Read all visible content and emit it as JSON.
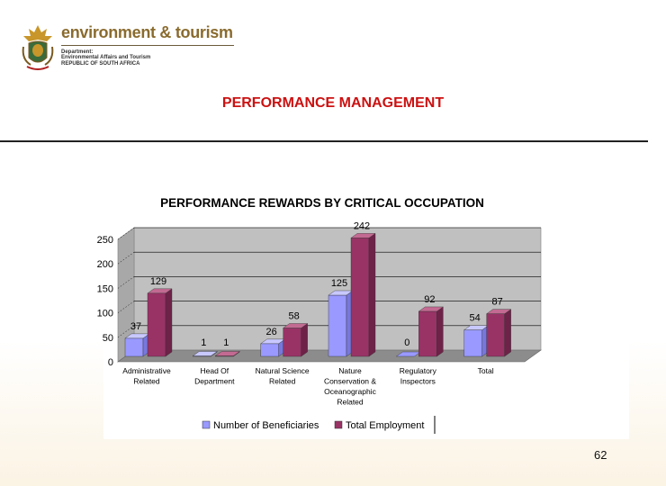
{
  "header": {
    "brand": "environment & tourism",
    "dept_lines": [
      "Department:",
      "Environmental Affairs and Tourism",
      "REPUBLIC OF SOUTH AFRICA"
    ],
    "logo_icon": "coat-of-arms-icon"
  },
  "page_title": "PERFORMANCE MANAGEMENT",
  "slide_number": "62",
  "colors": {
    "series1": "#9999ff",
    "series2": "#993366",
    "title_red": "#cc1111",
    "plot_bg": "#c0c0c0"
  },
  "chart_data": {
    "type": "bar",
    "title": "PERFORMANCE REWARDS BY CRITICAL OCCUPATION",
    "categories": [
      [
        "Administrative",
        "Related"
      ],
      [
        "Head Of",
        "Department"
      ],
      [
        "Natural Science",
        "Related"
      ],
      [
        "Nature",
        "Conservation &",
        "Oceanographic",
        "Related"
      ],
      [
        "Regulatory",
        "Inspectors"
      ],
      [
        "Total"
      ]
    ],
    "series": [
      {
        "name": "Number of Beneficiaries",
        "values": [
          37,
          1,
          26,
          125,
          0,
          54
        ]
      },
      {
        "name": "Total Employment",
        "values": [
          129,
          1,
          58,
          242,
          92,
          87
        ]
      }
    ],
    "yticks": [
      "0",
      "50",
      "100",
      "150",
      "200",
      "250"
    ],
    "ylim": [
      0,
      250
    ],
    "xlabel": "",
    "ylabel": "",
    "grid": true,
    "legend": "bottom",
    "style": "3d"
  }
}
